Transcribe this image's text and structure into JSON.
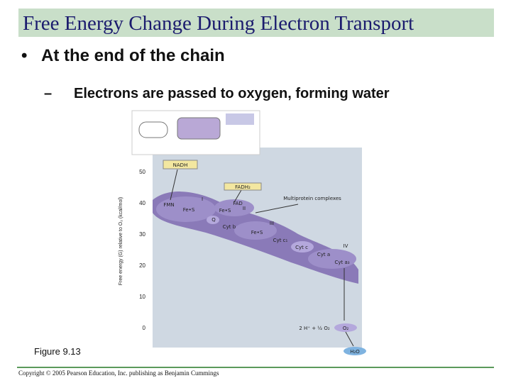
{
  "header": {
    "title": "Free Energy Change During Electron Transport"
  },
  "bullets": [
    {
      "text": "At the end of the chain"
    },
    {
      "text": "Electrons are passed to oxygen, forming water"
    }
  ],
  "figure": {
    "axis_label": "Free energy (G) relative to O₂ (kcal/mol)",
    "ticks": [
      "50",
      "40",
      "30",
      "20",
      "10",
      "0"
    ],
    "labels": [
      "NADH",
      "FADH₂",
      "FMN",
      "I",
      "FAD",
      "II",
      "Fe•S",
      "Fe•S",
      "Q",
      "Cyt b",
      "Fe•S",
      "III",
      "Cyt c₁",
      "Cyt c",
      "IV",
      "Cyt a",
      "Cyt a₃",
      "Multiprotein complexes",
      "2 H⁺ + ½ O₂",
      "O₂",
      "H₂O"
    ]
  },
  "caption": "Figure 9.13",
  "footer": "Copyright © 2005 Pearson Education, Inc. publishing as Benjamin Cummings"
}
